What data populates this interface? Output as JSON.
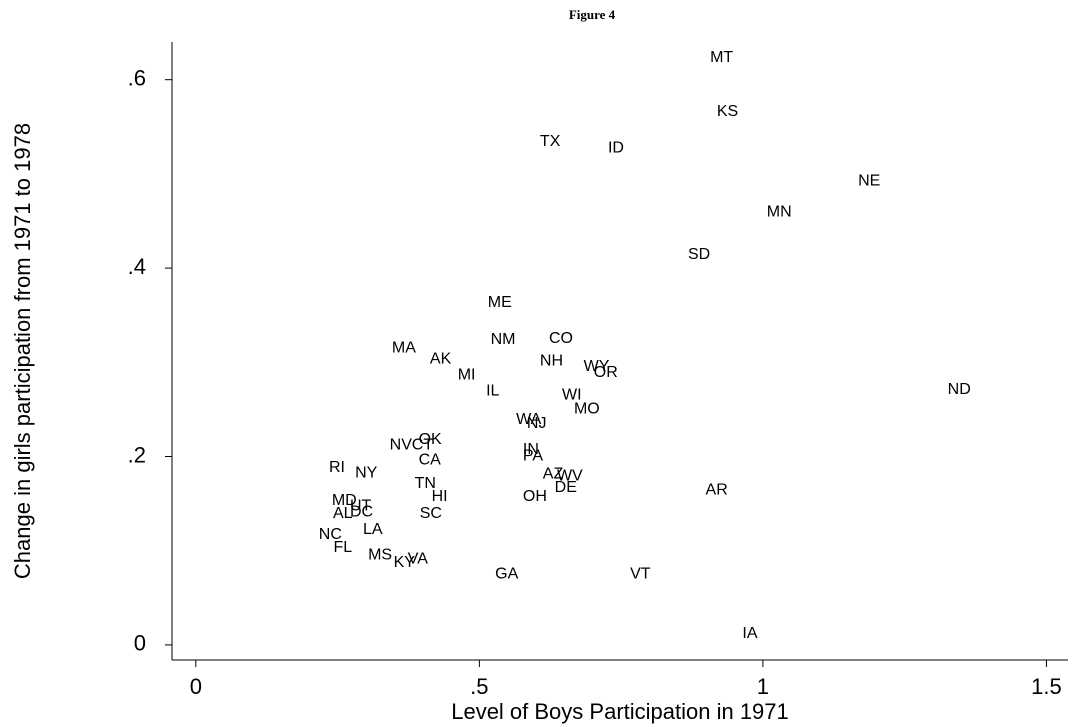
{
  "chart_data": {
    "type": "scatter",
    "title": "Figure 4",
    "x_label": "Level of Boys Participation in 1971",
    "y_label": "Change in girls participation from 1971 to 1978",
    "labels": [
      "MT",
      "KS",
      "TX",
      "ID",
      "NE",
      "MN",
      "SD",
      "ME",
      "CO",
      "NM",
      "MA",
      "AK",
      "NH",
      "WY",
      "OR",
      "MI",
      "IL",
      "WI",
      "ND",
      "MO",
      "WA",
      "NJ",
      "OK",
      "NV",
      "CT",
      "CA",
      "IN",
      "PA",
      "RI",
      "NY",
      "AZ",
      "WV",
      "DE",
      "TN",
      "AR",
      "HI",
      "OH",
      "MD",
      "UT",
      "AL",
      "DC",
      "SC",
      "LA",
      "NC",
      "FL",
      "MS",
      "KY",
      "VA",
      "GA",
      "VT",
      "IA"
    ],
    "x": [
      0.898,
      0.91,
      0.598,
      0.718,
      1.159,
      0.998,
      0.859,
      0.506,
      0.614,
      0.511,
      0.337,
      0.404,
      0.598,
      0.675,
      0.693,
      0.453,
      0.503,
      0.637,
      1.317,
      0.658,
      0.556,
      0.575,
      0.384,
      0.333,
      0.372,
      0.384,
      0.568,
      0.568,
      0.226,
      0.272,
      0.603,
      0.628,
      0.624,
      0.377,
      0.89,
      0.407,
      0.568,
      0.231,
      0.263,
      0.233,
      0.263,
      0.386,
      0.286,
      0.208,
      0.234,
      0.295,
      0.34,
      0.365,
      0.519,
      0.757,
      0.955
    ],
    "values": [
      0.623,
      0.566,
      0.534,
      0.527,
      0.492,
      0.459,
      0.414,
      0.363,
      0.325,
      0.324,
      0.315,
      0.303,
      0.301,
      0.295,
      0.289,
      0.286,
      0.269,
      0.265,
      0.271,
      0.25,
      0.239,
      0.235,
      0.218,
      0.212,
      0.212,
      0.196,
      0.207,
      0.2,
      0.188,
      0.182,
      0.181,
      0.179,
      0.167,
      0.171,
      0.164,
      0.157,
      0.157,
      0.153,
      0.147,
      0.139,
      0.141,
      0.139,
      0.122,
      0.117,
      0.103,
      0.095,
      0.087,
      0.091,
      0.075,
      0.075,
      0.012
    ],
    "color": "#000000",
    "xlim": [
      -0.042,
      1.538
    ],
    "ylim": [
      -0.016,
      0.64
    ],
    "xticks": [
      0,
      {
        "value": 0.5,
        "label": ".5"
      },
      1,
      1.5
    ],
    "yticks": [
      0,
      {
        "value": 0.2,
        "label": ".2"
      },
      {
        "value": 0.4,
        "label": ".4"
      },
      {
        "value": 0.6,
        "label": ".6"
      }
    ]
  }
}
